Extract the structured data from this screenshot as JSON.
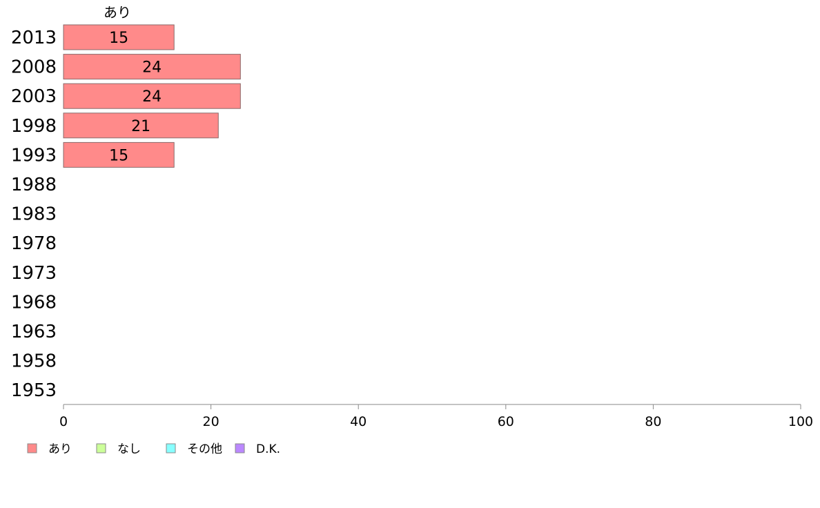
{
  "chart_data": {
    "type": "bar",
    "orientation": "horizontal",
    "stacked": true,
    "categories": [
      "2013",
      "2008",
      "2003",
      "1998",
      "1993",
      "1988",
      "1983",
      "1978",
      "1973",
      "1968",
      "1963",
      "1958",
      "1953"
    ],
    "series": [
      {
        "name": "あり",
        "color": "#ff8a8a",
        "values": [
          15,
          24,
          24,
          21,
          15,
          null,
          null,
          null,
          null,
          null,
          null,
          null,
          null
        ]
      },
      {
        "name": "なし",
        "color": "#ccff99",
        "values": [
          null,
          null,
          null,
          null,
          null,
          null,
          null,
          null,
          null,
          null,
          null,
          null,
          null
        ]
      },
      {
        "name": "その他",
        "color": "#88ffff",
        "values": [
          null,
          null,
          null,
          null,
          null,
          null,
          null,
          null,
          null,
          null,
          null,
          null,
          null
        ]
      },
      {
        "name": "D.K.",
        "color": "#bb88ff",
        "values": [
          null,
          null,
          null,
          null,
          null,
          null,
          null,
          null,
          null,
          null,
          null,
          null,
          null
        ]
      }
    ],
    "column_header": "あり",
    "xlim": [
      0,
      100
    ],
    "xticks": [
      0,
      20,
      40,
      60,
      80,
      100
    ],
    "grid": false,
    "legend_position": "bottom-left"
  }
}
